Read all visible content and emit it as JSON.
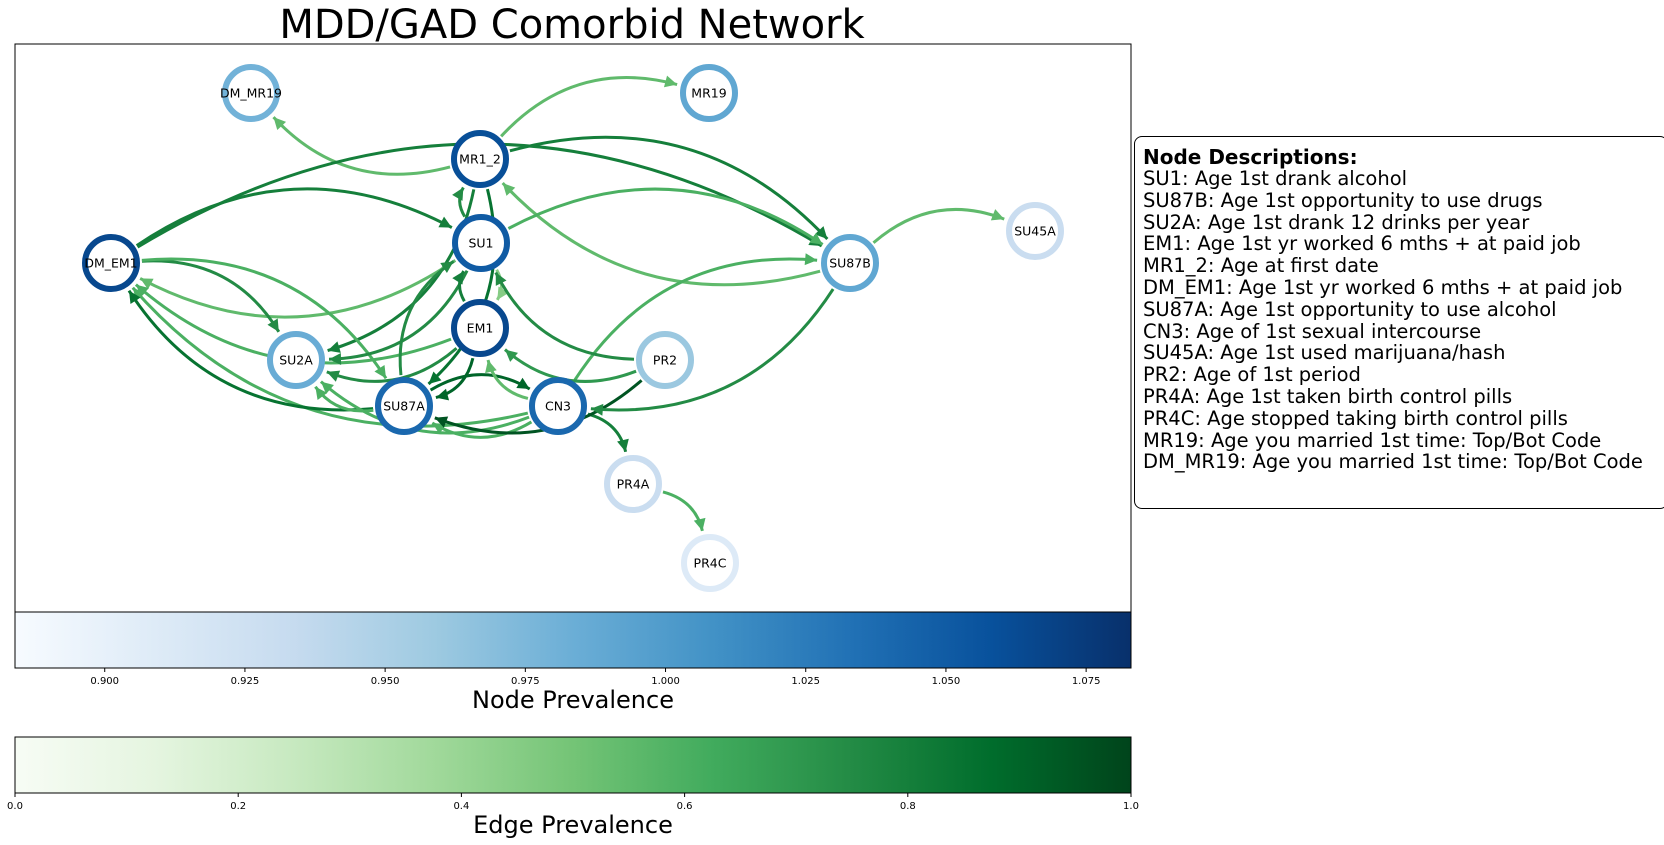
{
  "figure": {
    "title": "MDD/GAD Comorbid Network"
  },
  "colors": {
    "node_colormap": "Blues",
    "edge_colormap": "Greens",
    "background": "#ffffff"
  },
  "nodes": [
    {
      "id": "DM_MR19",
      "prevalence": 0.98
    },
    {
      "id": "MR19",
      "prevalence": 0.99
    },
    {
      "id": "MR1_2",
      "prevalence": 1.06
    },
    {
      "id": "SU1",
      "prevalence": 1.05
    },
    {
      "id": "DM_EM1",
      "prevalence": 1.065
    },
    {
      "id": "SU87B",
      "prevalence": 0.99
    },
    {
      "id": "SU45A",
      "prevalence": 0.93
    },
    {
      "id": "EM1",
      "prevalence": 1.065
    },
    {
      "id": "SU2A",
      "prevalence": 0.985
    },
    {
      "id": "PR2",
      "prevalence": 0.96
    },
    {
      "id": "SU87A",
      "prevalence": 1.04
    },
    {
      "id": "CN3",
      "prevalence": 1.04
    },
    {
      "id": "PR4A",
      "prevalence": 0.93
    },
    {
      "id": "PR4C",
      "prevalence": 0.91
    }
  ],
  "edges": [
    {
      "from": "MR1_2",
      "to": "DM_MR19",
      "prevalence": 0.55
    },
    {
      "from": "MR1_2",
      "to": "MR19",
      "prevalence": 0.55
    },
    {
      "from": "SU87B",
      "to": "MR1_2",
      "prevalence": 0.55
    },
    {
      "from": "SU87B",
      "to": "SU45A",
      "prevalence": 0.55
    },
    {
      "from": "SU1",
      "to": "MR1_2",
      "prevalence": 0.75
    },
    {
      "from": "MR1_2",
      "to": "SU2A",
      "prevalence": 0.8
    },
    {
      "from": "MR1_2",
      "to": "SU87A",
      "prevalence": 0.85
    },
    {
      "from": "MR1_2",
      "to": "SU87B",
      "prevalence": 0.8
    },
    {
      "from": "SU1",
      "to": "DM_EM1",
      "prevalence": 0.55
    },
    {
      "from": "EM1",
      "to": "DM_EM1",
      "prevalence": 0.6
    },
    {
      "from": "CN3",
      "to": "DM_EM1",
      "prevalence": 0.6
    },
    {
      "from": "SU87A",
      "to": "DM_EM1",
      "prevalence": 0.85
    },
    {
      "from": "DM_EM1",
      "to": "SU1",
      "prevalence": 0.8
    },
    {
      "from": "DM_EM1",
      "to": "SU87B",
      "prevalence": 0.8
    },
    {
      "from": "DM_EM1",
      "to": "SU2A",
      "prevalence": 0.75
    },
    {
      "from": "DM_EM1",
      "to": "SU87A",
      "prevalence": 0.6
    },
    {
      "from": "SU1",
      "to": "SU2A",
      "prevalence": 0.75
    },
    {
      "from": "SU1",
      "to": "SU87B",
      "prevalence": 0.6
    },
    {
      "from": "SU1",
      "to": "EM1",
      "prevalence": 0.45
    },
    {
      "from": "EM1",
      "to": "SU1",
      "prevalence": 0.8
    },
    {
      "from": "EM1",
      "to": "SU2A",
      "prevalence": 0.75
    },
    {
      "from": "EM1",
      "to": "SU87A",
      "prevalence": 0.9
    },
    {
      "from": "SU87A",
      "to": "SU1",
      "prevalence": 0.75
    },
    {
      "from": "SU87A",
      "to": "SU2A",
      "prevalence": 0.6
    },
    {
      "from": "SU87A",
      "to": "CN3",
      "prevalence": 0.9
    },
    {
      "from": "CN3",
      "to": "SU2A",
      "prevalence": 0.6
    },
    {
      "from": "CN3",
      "to": "SU87A",
      "prevalence": 0.6
    },
    {
      "from": "CN3",
      "to": "EM1",
      "prevalence": 0.55
    },
    {
      "from": "CN3",
      "to": "SU87B",
      "prevalence": 0.6
    },
    {
      "from": "CN3",
      "to": "PR4A",
      "prevalence": 0.8
    },
    {
      "from": "PR2",
      "to": "SU1",
      "prevalence": 0.75
    },
    {
      "from": "PR2",
      "to": "EM1",
      "prevalence": 0.7
    },
    {
      "from": "PR2",
      "to": "SU87A",
      "prevalence": 0.95
    },
    {
      "from": "SU87B",
      "to": "CN3",
      "prevalence": 0.75
    },
    {
      "from": "PR4A",
      "to": "PR4C",
      "prevalence": 0.6
    }
  ],
  "node_colorbar": {
    "label": "Node Prevalence",
    "min": 0.884,
    "max": 1.083,
    "ticks": [
      "0.900",
      "0.925",
      "0.950",
      "0.975",
      "1.000",
      "1.025",
      "1.050",
      "1.075"
    ],
    "tick_values": [
      0.9,
      0.925,
      0.95,
      0.975,
      1.0,
      1.025,
      1.05,
      1.075
    ]
  },
  "edge_colorbar": {
    "label": "Edge Prevalence",
    "min": 0.0,
    "max": 1.0,
    "ticks": [
      "0.0",
      "0.2",
      "0.4",
      "0.6",
      "0.8",
      "1.0"
    ],
    "tick_values": [
      0.0,
      0.2,
      0.4,
      0.6,
      0.8,
      1.0
    ]
  },
  "legend": {
    "title": "Node Descriptions:",
    "items": [
      "SU1: Age 1st drank alcohol",
      "SU87B: Age 1st opportunity to use drugs",
      "SU2A: Age 1st drank 12 drinks per year",
      "EM1: Age 1st yr worked 6 mths + at paid job",
      "MR1_2: Age at first date",
      "DM_EM1: Age 1st yr worked 6 mths + at paid job",
      "SU87A: Age 1st opportunity to use alcohol",
      "CN3: Age of 1st sexual intercourse",
      "SU45A: Age 1st used marijuana/hash",
      "PR2: Age of 1st period",
      "PR4A: Age 1st taken birth control pills",
      "PR4C: Age stopped taking birth control pills",
      "MR19: Age you married 1st time: Top/Bot Code",
      "DM_MR19: Age you married 1st time: Top/Bot Code"
    ]
  }
}
